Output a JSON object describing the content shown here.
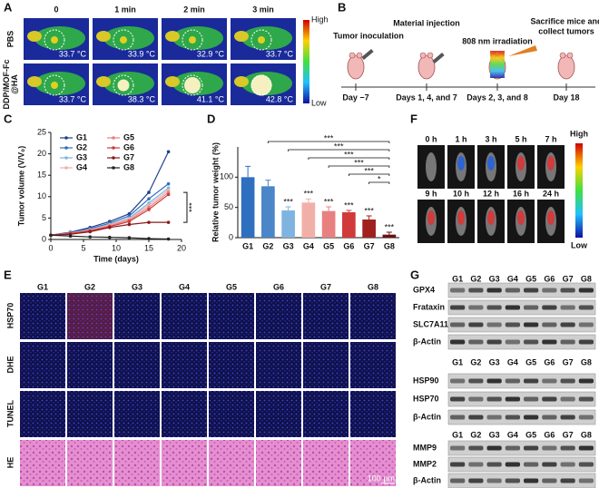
{
  "panel_labels": [
    "A",
    "B",
    "C",
    "D",
    "E",
    "F",
    "G"
  ],
  "panel_a": {
    "columns": [
      "0",
      "1 min",
      "2 min",
      "3 min"
    ],
    "rows": [
      {
        "label_lines": [
          "PBS"
        ],
        "temperatures": [
          "33.7 °C",
          "33.9 °C",
          "32.9 °C",
          "33.7 °C"
        ]
      },
      {
        "label_lines": [
          "DDP/MOF-Fc",
          "@HA"
        ],
        "temperatures": [
          "33.7 °C",
          "38.3 °C",
          "41.1 °C",
          "42.8 °C"
        ]
      }
    ],
    "colorbar": {
      "high": "High",
      "low": "Low"
    }
  },
  "panel_b": {
    "steps": [
      {
        "label_lines": [
          "Tumor inoculation"
        ],
        "day": "Day −7"
      },
      {
        "label_lines": [
          "Material injection"
        ],
        "day": "Days 1, 4, and 7"
      },
      {
        "label_lines": [
          "808 nm irradiation"
        ],
        "day": "Days 2, 3, and 8"
      },
      {
        "label_lines": [
          "Sacrifice mice and",
          "collect tumors"
        ],
        "day": "Day 18"
      }
    ]
  },
  "chart_data": [
    {
      "type": "line",
      "xlabel": "Time (days)",
      "ylabel": "Tumor volume (V/V₀)",
      "x": [
        0,
        3,
        6,
        9,
        12,
        15,
        18
      ],
      "xlim": [
        0,
        20
      ],
      "xticks": [
        0,
        5,
        10,
        15,
        20
      ],
      "ylim": [
        0,
        25
      ],
      "yticks": [
        0,
        5,
        10,
        15,
        20,
        25
      ],
      "annotation": "***",
      "series": [
        {
          "name": "G1",
          "color": "#1f3f8f",
          "values": [
            1,
            1.7,
            2.8,
            4.2,
            6,
            11,
            20.5
          ]
        },
        {
          "name": "G2",
          "color": "#2f6fc0",
          "values": [
            1,
            1.6,
            2.5,
            3.8,
            5.5,
            9.5,
            13
          ]
        },
        {
          "name": "G3",
          "color": "#7fb4e0",
          "values": [
            1,
            1.5,
            2.3,
            3.5,
            5,
            8.5,
            12
          ]
        },
        {
          "name": "G4",
          "color": "#f0b0a8",
          "values": [
            1,
            1.5,
            2.2,
            3.4,
            4.8,
            8,
            11.5
          ]
        },
        {
          "name": "G5",
          "color": "#e88080",
          "values": [
            1,
            1.4,
            2.1,
            3.2,
            4.5,
            7.5,
            11
          ]
        },
        {
          "name": "G6",
          "color": "#d03a3a",
          "values": [
            1,
            1.4,
            2,
            3,
            4.2,
            7,
            10.5
          ]
        },
        {
          "name": "G7",
          "color": "#8a1a1a",
          "values": [
            1,
            1.2,
            1.8,
            2.8,
            3.5,
            4,
            4
          ]
        },
        {
          "name": "G8",
          "color": "#222222",
          "values": [
            1,
            0.8,
            0.6,
            0.5,
            0.4,
            0.2,
            0.1
          ]
        }
      ]
    },
    {
      "type": "bar",
      "ylabel": "Relative tumor weight (%)",
      "categories": [
        "G1",
        "G2",
        "G3",
        "G4",
        "G5",
        "G6",
        "G7",
        "G8"
      ],
      "values": [
        100,
        85,
        45,
        58,
        44,
        42,
        30,
        5
      ],
      "errors": [
        18,
        10,
        6,
        6,
        7,
        3,
        6,
        4
      ],
      "colors": [
        "#2f6fc0",
        "#4a86c8",
        "#7fb4e0",
        "#f0b0a8",
        "#e88080",
        "#d03a3a",
        "#a02020",
        "#6a1010"
      ],
      "ylim": [
        0,
        150
      ],
      "yticks": [
        0,
        50,
        100
      ],
      "significance": [
        null,
        null,
        "***",
        "***",
        "***",
        "***",
        "***",
        "***"
      ],
      "brackets": [
        "***",
        "***",
        "***",
        "***",
        "***",
        "*"
      ]
    }
  ],
  "panel_e": {
    "columns": [
      "G1",
      "G2",
      "G3",
      "G4",
      "G5",
      "G6",
      "G7",
      "G8"
    ],
    "rows": [
      "HSP70",
      "DHE",
      "TUNEL",
      "HE"
    ],
    "scale_bar": "100 μm"
  },
  "panel_f": {
    "times": [
      "0 h",
      "1 h",
      "3 h",
      "5 h",
      "7 h",
      "9 h",
      "10 h",
      "12 h",
      "16 h",
      "24 h"
    ],
    "high": "High",
    "low": "Low"
  },
  "panel_g": {
    "blots": [
      {
        "columns": [
          "G1",
          "G2",
          "G3",
          "G4",
          "G5",
          "G6",
          "G7",
          "G8"
        ],
        "rows": [
          "GPX4",
          "Frataxin",
          "SLC7A11",
          "β-Actin"
        ]
      },
      {
        "columns": [
          "G1",
          "G2",
          "G3",
          "G4",
          "G5",
          "G6",
          "G7",
          "G8"
        ],
        "rows": [
          "HSP90",
          "HSP70",
          "β-Actin"
        ]
      },
      {
        "columns": [
          "G1",
          "G2",
          "G3",
          "G4",
          "G5",
          "G6",
          "G7",
          "G8"
        ],
        "rows": [
          "MMP9",
          "MMP2",
          "β-Actin"
        ]
      }
    ]
  }
}
